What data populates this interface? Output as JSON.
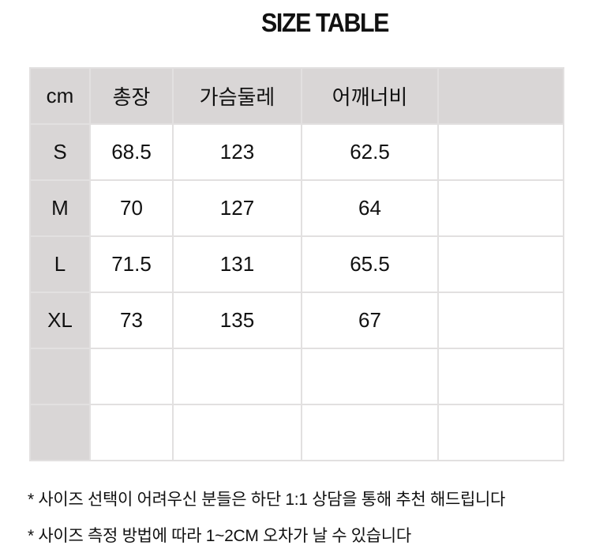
{
  "title": "SIZE TABLE",
  "table": {
    "headers": [
      "cm",
      "총장",
      "가슴둘레",
      "어깨너비",
      ""
    ],
    "rows": [
      [
        "S",
        "68.5",
        "123",
        "62.5",
        ""
      ],
      [
        "M",
        "70",
        "127",
        "64",
        ""
      ],
      [
        "L",
        "71.5",
        "131",
        "65.5",
        ""
      ],
      [
        "XL",
        "73",
        "135",
        "67",
        ""
      ],
      [
        "",
        "",
        "",
        "",
        ""
      ],
      [
        "",
        "",
        "",
        "",
        ""
      ]
    ]
  },
  "notes": [
    "* 사이즈 선택이 어려우신 분들은 하단 1:1 상담을 통해 추천 해드립니다",
    "* 사이즈 측정 방법에 따라 1~2CM 오차가 날 수 있습니다"
  ],
  "colors": {
    "header_bg": "#d9d6d6",
    "border": "#e2e0e0"
  }
}
